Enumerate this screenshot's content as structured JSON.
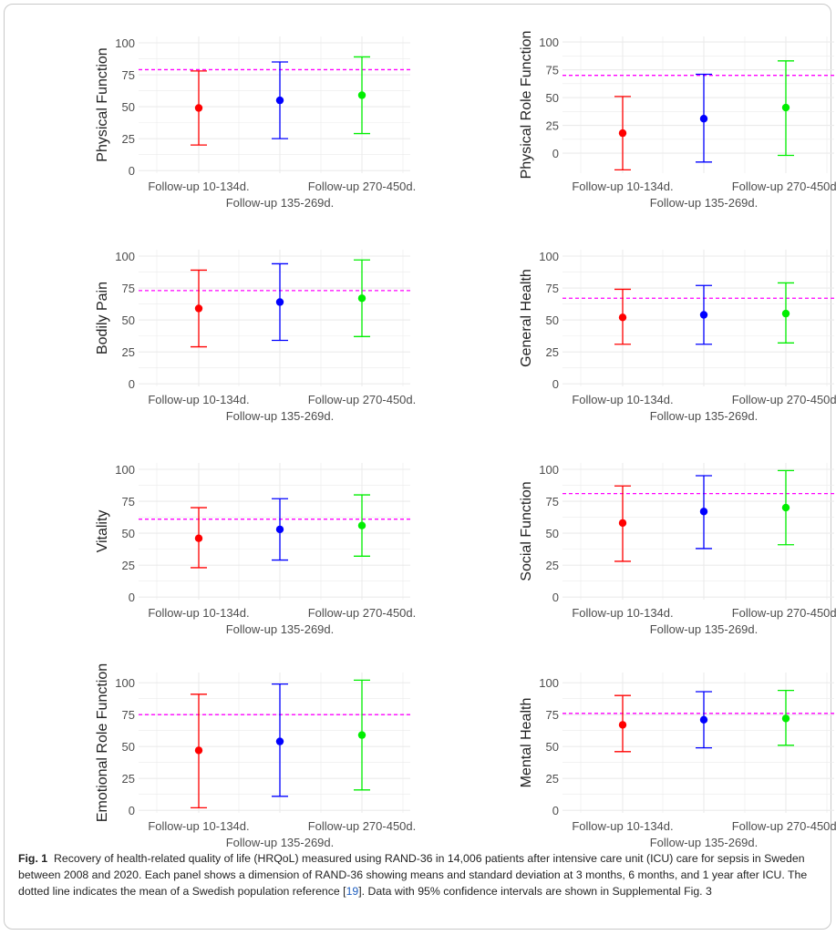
{
  "chart_data": [
    {
      "type": "errorbar",
      "ylabel": "Physical Function",
      "categories": [
        "Follow-up 10-134d.",
        "Follow-up 135-269d.",
        "Follow-up 270-450d."
      ],
      "means": [
        49,
        55,
        59
      ],
      "lower": [
        20,
        25,
        29
      ],
      "upper": [
        78,
        85,
        89
      ],
      "reference": 79,
      "yticks": [
        0,
        25,
        50,
        75,
        100
      ],
      "ylim": [
        -2,
        105
      ]
    },
    {
      "type": "errorbar",
      "ylabel": "Physical Role Function",
      "categories": [
        "Follow-up 10-134d.",
        "Follow-up 135-269d.",
        "Follow-up 270-450d."
      ],
      "means": [
        18,
        31,
        41
      ],
      "lower": [
        -15,
        -8,
        -2
      ],
      "upper": [
        51,
        71,
        83
      ],
      "reference": 70,
      "yticks": [
        0,
        25,
        50,
        75,
        100
      ],
      "ylim": [
        -18,
        105
      ]
    },
    {
      "type": "errorbar",
      "ylabel": "Bodily Pain",
      "categories": [
        "Follow-up 10-134d.",
        "Follow-up 135-269d.",
        "Follow-up 270-450d."
      ],
      "means": [
        59,
        64,
        67
      ],
      "lower": [
        29,
        34,
        37
      ],
      "upper": [
        89,
        94,
        97
      ],
      "reference": 73,
      "yticks": [
        0,
        25,
        50,
        75,
        100
      ],
      "ylim": [
        -2,
        105
      ]
    },
    {
      "type": "errorbar",
      "ylabel": "General Health",
      "categories": [
        "Follow-up 10-134d.",
        "Follow-up 135-269d.",
        "Follow-up 270-450d."
      ],
      "means": [
        52,
        54,
        55
      ],
      "lower": [
        31,
        31,
        32
      ],
      "upper": [
        74,
        77,
        79
      ],
      "reference": 67,
      "yticks": [
        0,
        25,
        50,
        75,
        100
      ],
      "ylim": [
        -2,
        105
      ]
    },
    {
      "type": "errorbar",
      "ylabel": "Vitality",
      "categories": [
        "Follow-up 10-134d.",
        "Follow-up 135-269d.",
        "Follow-up 270-450d."
      ],
      "means": [
        46,
        53,
        56
      ],
      "lower": [
        23,
        29,
        32
      ],
      "upper": [
        70,
        77,
        80
      ],
      "reference": 61,
      "yticks": [
        0,
        25,
        50,
        75,
        100
      ],
      "ylim": [
        -2,
        105
      ]
    },
    {
      "type": "errorbar",
      "ylabel": "Social Function",
      "categories": [
        "Follow-up 10-134d.",
        "Follow-up 135-269d.",
        "Follow-up 270-450d."
      ],
      "means": [
        58,
        67,
        70
      ],
      "lower": [
        28,
        38,
        41
      ],
      "upper": [
        87,
        95,
        99
      ],
      "reference": 81,
      "yticks": [
        0,
        25,
        50,
        75,
        100
      ],
      "ylim": [
        -2,
        105
      ]
    },
    {
      "type": "errorbar",
      "ylabel": "Emotional Role Function",
      "categories": [
        "Follow-up 10-134d.",
        "Follow-up 135-269d.",
        "Follow-up 270-450d."
      ],
      "means": [
        47,
        54,
        59
      ],
      "lower": [
        2,
        11,
        16
      ],
      "upper": [
        91,
        99,
        102
      ],
      "reference": 75,
      "yticks": [
        0,
        25,
        50,
        75,
        100
      ],
      "ylim": [
        -2,
        108
      ]
    },
    {
      "type": "errorbar",
      "ylabel": "Mental Health",
      "categories": [
        "Follow-up 10-134d.",
        "Follow-up 135-269d.",
        "Follow-up 270-450d."
      ],
      "means": [
        67,
        71,
        72
      ],
      "lower": [
        46,
        49,
        51
      ],
      "upper": [
        90,
        93,
        94
      ],
      "reference": 76,
      "yticks": [
        0,
        25,
        50,
        75,
        100
      ],
      "ylim": [
        -2,
        108
      ]
    }
  ],
  "colors": {
    "series": [
      "#ff0000",
      "#0000ff",
      "#00ee00"
    ],
    "reference_line": "#ff00ff",
    "grid": "#ebebeb"
  },
  "caption": {
    "label": "Fig. 1",
    "text_before_ref": "Recovery of health-related quality of life (HRQoL) measured using RAND-36 in 14,006 patients after intensive care unit (ICU) care for sepsis in Sweden between 2008 and 2020. Each panel shows a dimension of RAND-36 showing means and standard deviation at 3 months, 6 months, and 1 year after ICU. The dotted line indicates the mean of a Swedish population reference [",
    "ref": "19",
    "text_after_ref": "]. Data with 95% confidence intervals are shown in Supplemental Fig. 3"
  }
}
